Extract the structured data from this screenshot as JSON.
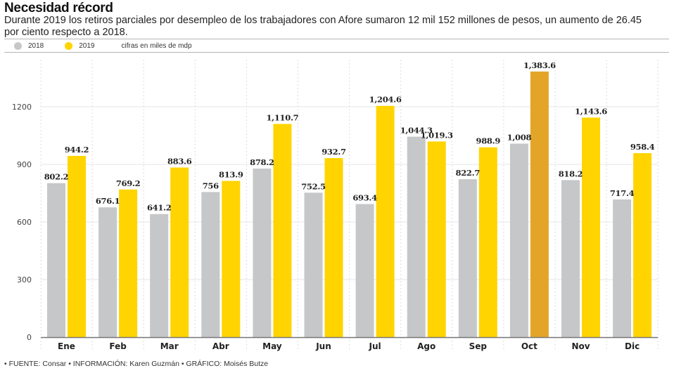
{
  "header": {
    "title": "Necesidad récord",
    "subtitle": "Durante 2019 los retiros parciales por desempleo de los trabajadores con Afore sumaron 12 mil 152 millones de pesos, un aumento de 26.45 por ciento respecto a 2018."
  },
  "legend": {
    "items": [
      {
        "label": "2018",
        "color": "#c6c7c9"
      },
      {
        "label": "2019",
        "color": "#ffd400"
      }
    ],
    "note": "cifras en miles de mdp"
  },
  "footer": "• FUENTE: Consar • INFORMACIÓN: Karen Guzmán • GRÁFICO: Moisés Butze",
  "chart_data": {
    "type": "bar",
    "title": "Necesidad récord",
    "xlabel": "",
    "ylabel": "",
    "ylim": [
      0,
      1380
    ],
    "yticks": [
      0,
      300,
      600,
      900,
      1200
    ],
    "ytick_labels": [
      "0",
      "300",
      "600",
      "900",
      "1200"
    ],
    "grid": true,
    "legend_position": "top-left",
    "categories": [
      "Ene",
      "Feb",
      "Mar",
      "Abr",
      "May",
      "Jun",
      "Jul",
      "Ago",
      "Sep",
      "Oct",
      "Nov",
      "Dic"
    ],
    "series": [
      {
        "name": "2018",
        "color": "#c6c7c9",
        "values": [
          802.2,
          676.1,
          641.2,
          756,
          878.2,
          752.5,
          693.4,
          1044.3,
          822.7,
          1008,
          818.2,
          717.4
        ],
        "labels": [
          "802.2",
          "676.1",
          "641.2",
          "756",
          "878.2",
          "752.5",
          "693.4",
          "1,044.3",
          "822.7",
          "1,008",
          "818.2",
          "717.4"
        ]
      },
      {
        "name": "2019",
        "color": "#ffd400",
        "highlight_color": "#e3a527",
        "highlight_index": 9,
        "values": [
          944.2,
          769.2,
          883.6,
          813.9,
          1110.7,
          932.7,
          1204.6,
          1019.3,
          988.9,
          1383.6,
          1143.6,
          958.4
        ],
        "labels": [
          "944.2",
          "769.2",
          "883.6",
          "813.9",
          "1,110.7",
          "932.7",
          "1,204.6",
          "1,019.3",
          "988.9",
          "1,383.6",
          "1,143.6",
          "958.4"
        ]
      }
    ]
  }
}
